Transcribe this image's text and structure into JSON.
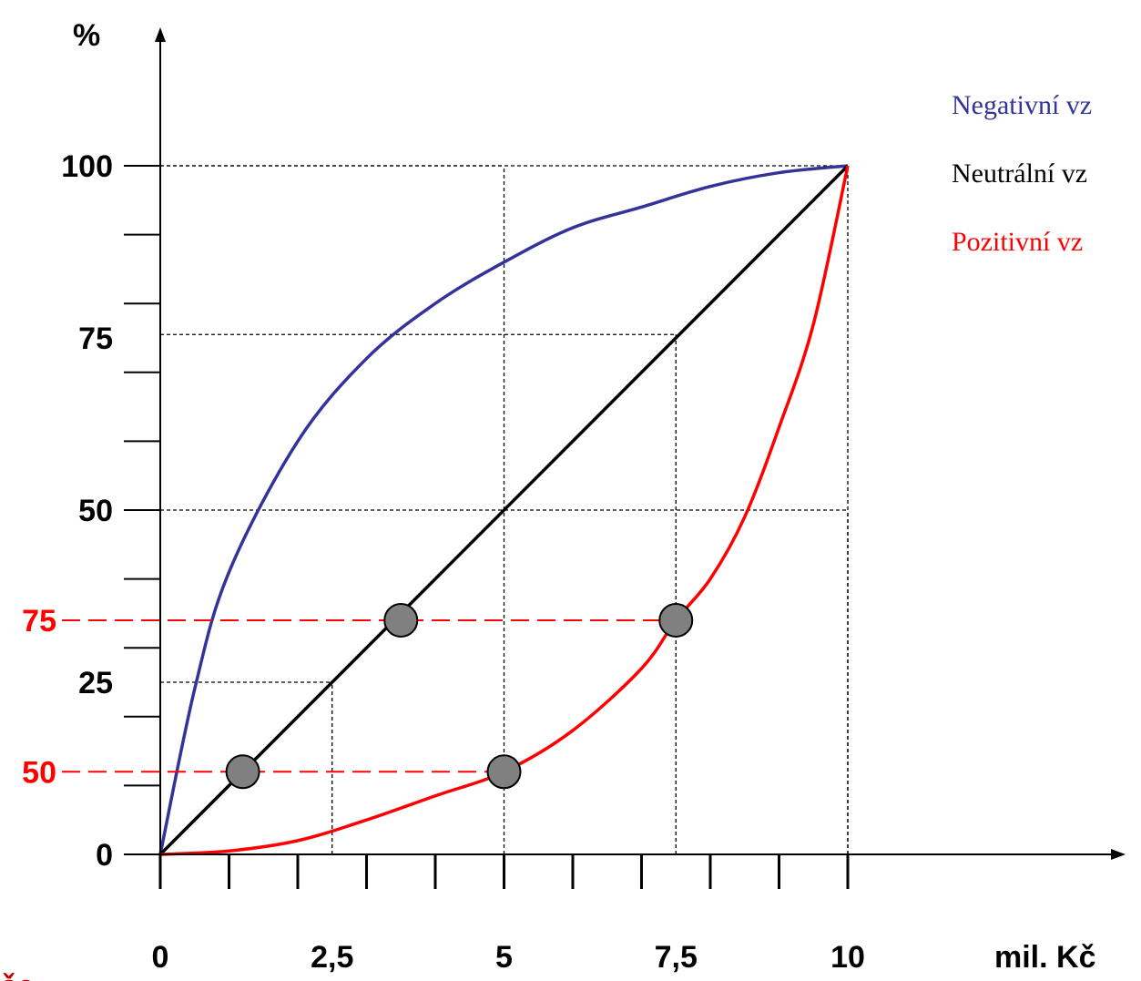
{
  "chart_data": {
    "type": "line",
    "ylabel": "%",
    "xlabel": "mil. Kč",
    "xlim": [
      0,
      10
    ],
    "ylim": [
      0,
      100
    ],
    "x_ticks": [
      {
        "value": 0,
        "label": "0"
      },
      {
        "value": 2.5,
        "label": "2,5"
      },
      {
        "value": 5,
        "label": "5"
      },
      {
        "value": 7.5,
        "label": "7,5"
      },
      {
        "value": 10,
        "label": "10"
      }
    ],
    "y_ticks": [
      {
        "value": 0,
        "label": "0"
      },
      {
        "value": 25,
        "label": "25"
      },
      {
        "value": 50,
        "label": "50"
      },
      {
        "value": 75,
        "label": "75"
      },
      {
        "value": 100,
        "label": "100"
      }
    ],
    "series": [
      {
        "name": "Negativní vz",
        "color": "#33339a",
        "curve": "concave",
        "x": [
          0,
          0.5,
          1,
          2,
          3,
          4,
          5,
          6,
          7,
          8,
          9,
          10
        ],
        "y": [
          0,
          24,
          41,
          60,
          72,
          80,
          86,
          91,
          94,
          97,
          99,
          100
        ]
      },
      {
        "name": "Neutrální vz",
        "color": "#000000",
        "curve": "linear",
        "x": [
          0,
          10
        ],
        "y": [
          0,
          100
        ]
      },
      {
        "name": "Pozitivní vz",
        "color": "#ff0000",
        "curve": "convex",
        "x": [
          0,
          1,
          2,
          3,
          4,
          5,
          6,
          7,
          7.5,
          8,
          8.5,
          9,
          9.5,
          10
        ],
        "y": [
          0,
          0.5,
          2,
          5,
          8.5,
          12,
          18,
          27,
          34,
          40,
          49,
          62,
          77,
          100
        ]
      }
    ],
    "reference_lines": [
      {
        "x": 10,
        "y": 100
      },
      {
        "x": 5,
        "y": 100
      },
      {
        "x": 10,
        "y": 50
      },
      {
        "x": 7.5,
        "y": 75.5
      },
      {
        "x": 2.5,
        "y": 25
      }
    ],
    "highlights": {
      "color": "#ff0000",
      "levels": [
        {
          "label": "75",
          "y": 34,
          "points": [
            3.5,
            7.5
          ]
        },
        {
          "label": "50",
          "y": 12,
          "points": [
            1.2,
            5
          ]
        }
      ]
    },
    "grid": false
  },
  "cutoff_text": "če"
}
